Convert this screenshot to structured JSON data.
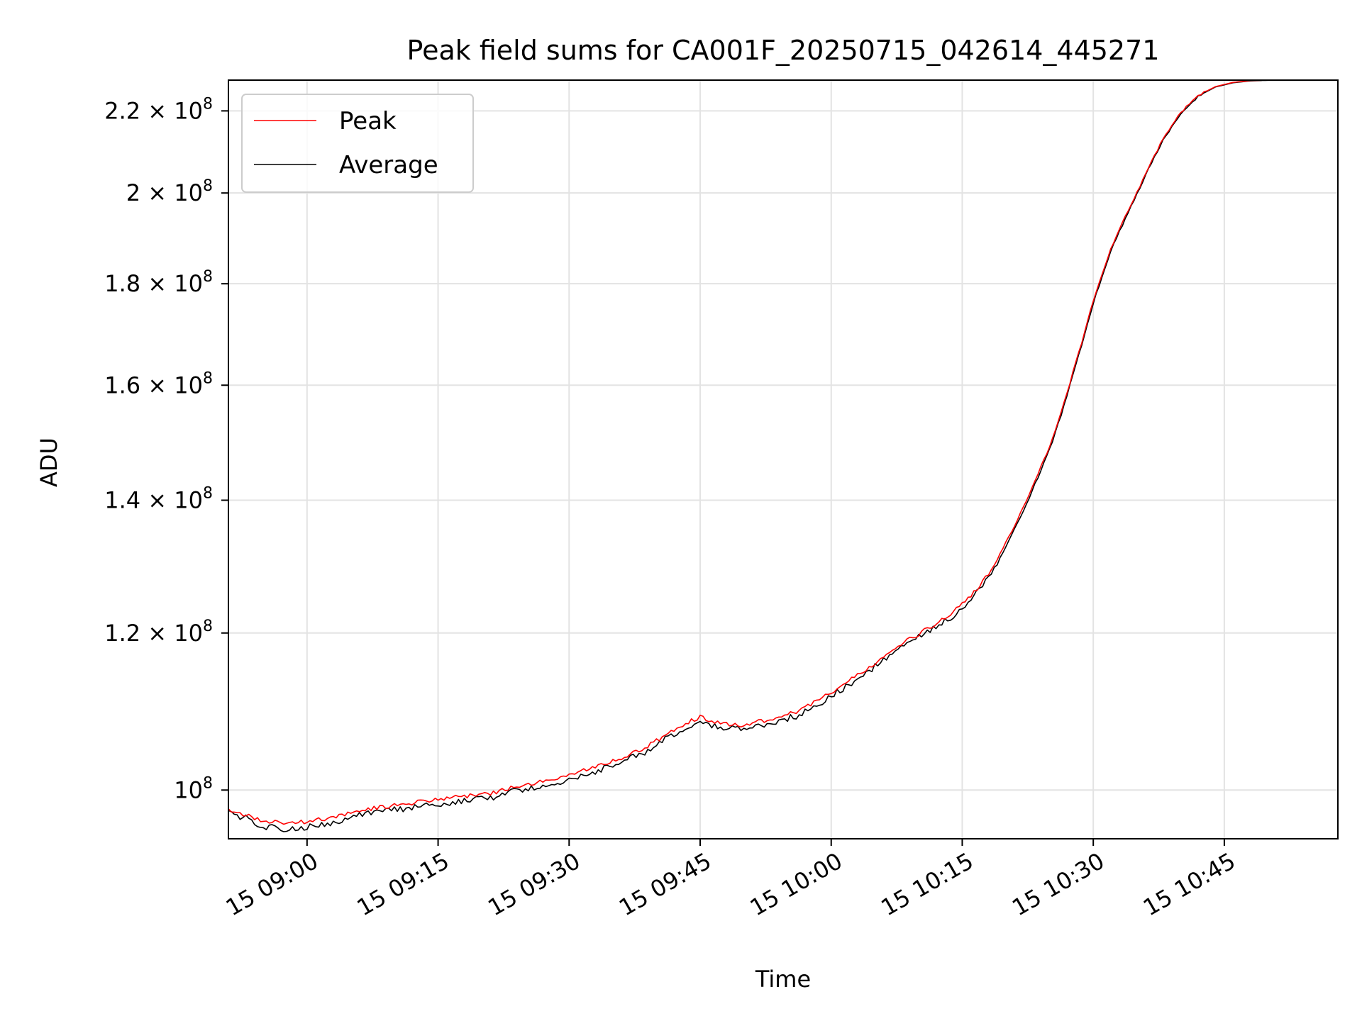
{
  "chart_data": {
    "type": "line",
    "title": "Peak field sums for CA001F_20250715_042614_445271",
    "xlabel": "Time",
    "ylabel": "ADU",
    "yscale": "log",
    "grid": true,
    "legend_position": "upper-left",
    "xlim": [
      "2025-07-15 08:51",
      "2025-07-15 10:58"
    ],
    "ylim": [
      94500000,
      228000000
    ],
    "x_ticks": [
      {
        "value": "2025-07-15 09:00",
        "label": "15 09:00"
      },
      {
        "value": "2025-07-15 09:15",
        "label": "15 09:15"
      },
      {
        "value": "2025-07-15 09:30",
        "label": "15 09:30"
      },
      {
        "value": "2025-07-15 09:45",
        "label": "15 09:45"
      },
      {
        "value": "2025-07-15 10:00",
        "label": "15 10:00"
      },
      {
        "value": "2025-07-15 10:15",
        "label": "15 10:15"
      },
      {
        "value": "2025-07-15 10:30",
        "label": "15 10:30"
      },
      {
        "value": "2025-07-15 10:45",
        "label": "15 10:45"
      }
    ],
    "y_ticks": [
      {
        "value": 100000000,
        "mantissa": "",
        "exponent": "8"
      },
      {
        "value": 120000000,
        "mantissa": "1.2",
        "exponent": "8"
      },
      {
        "value": 140000000,
        "mantissa": "1.4",
        "exponent": "8"
      },
      {
        "value": 160000000,
        "mantissa": "1.6",
        "exponent": "8"
      },
      {
        "value": 180000000,
        "mantissa": "1.8",
        "exponent": "8"
      },
      {
        "value": 200000000,
        "mantissa": "2",
        "exponent": "8"
      },
      {
        "value": 220000000,
        "mantissa": "2.2",
        "exponent": "8"
      }
    ],
    "x": [
      "2025-07-15 08:51",
      "2025-07-15 08:53",
      "2025-07-15 08:55",
      "2025-07-15 08:57",
      "2025-07-15 09:00",
      "2025-07-15 09:03",
      "2025-07-15 09:06",
      "2025-07-15 09:09",
      "2025-07-15 09:12",
      "2025-07-15 09:15",
      "2025-07-15 09:18",
      "2025-07-15 09:21",
      "2025-07-15 09:24",
      "2025-07-15 09:27",
      "2025-07-15 09:30",
      "2025-07-15 09:33",
      "2025-07-15 09:36",
      "2025-07-15 09:39",
      "2025-07-15 09:42",
      "2025-07-15 09:45",
      "2025-07-15 09:47",
      "2025-07-15 09:50",
      "2025-07-15 09:53",
      "2025-07-15 09:56",
      "2025-07-15 09:59",
      "2025-07-15 10:02",
      "2025-07-15 10:05",
      "2025-07-15 10:08",
      "2025-07-15 10:11",
      "2025-07-15 10:14",
      "2025-07-15 10:17",
      "2025-07-15 10:19",
      "2025-07-15 10:21",
      "2025-07-15 10:23",
      "2025-07-15 10:25",
      "2025-07-15 10:26",
      "2025-07-15 10:27",
      "2025-07-15 10:28",
      "2025-07-15 10:29",
      "2025-07-15 10:30",
      "2025-07-15 10:32",
      "2025-07-15 10:34",
      "2025-07-15 10:36",
      "2025-07-15 10:38",
      "2025-07-15 10:40",
      "2025-07-15 10:42",
      "2025-07-15 10:44",
      "2025-07-15 10:46",
      "2025-07-15 10:48",
      "2025-07-15 10:50",
      "2025-07-15 10:58"
    ],
    "series": [
      {
        "name": "Peak",
        "color": "#ff0000",
        "values": [
          97700000,
          97100000,
          96500000,
          96300000,
          96400000,
          96900000,
          97700000,
          98100000,
          98500000,
          98900000,
          99300000,
          99600000,
          100400000,
          101000000,
          101800000,
          102800000,
          103800000,
          105200000,
          107300000,
          108900000,
          108100000,
          107800000,
          108600000,
          109500000,
          111300000,
          113500000,
          115900000,
          118400000,
          120600000,
          122900000,
          126700000,
          130600000,
          136000000,
          142000000,
          149000000,
          153500000,
          158500000,
          164500000,
          170000000,
          176500000,
          187500000,
          196000000,
          204500000,
          213000000,
          219500000,
          224000000,
          226300000,
          227400000,
          227900000,
          228000000,
          228000000
        ]
      },
      {
        "name": "Average",
        "color": "#000000",
        "values": [
          97300000,
          96800000,
          95900000,
          95600000,
          95800000,
          96300000,
          97200000,
          97600000,
          98000000,
          98400000,
          98800000,
          99100000,
          99900000,
          100500000,
          101300000,
          102200000,
          103300000,
          104600000,
          106800000,
          108400000,
          107500000,
          107300000,
          108100000,
          109000000,
          110800000,
          113000000,
          115400000,
          117900000,
          120100000,
          122400000,
          126200000,
          130000000,
          135400000,
          141500000,
          148500000,
          153000000,
          158000000,
          164000000,
          169500000,
          176000000,
          187000000,
          195600000,
          204200000,
          212800000,
          219300000,
          223800000,
          226200000,
          227300000,
          227800000,
          227950000,
          227950000
        ]
      }
    ]
  }
}
